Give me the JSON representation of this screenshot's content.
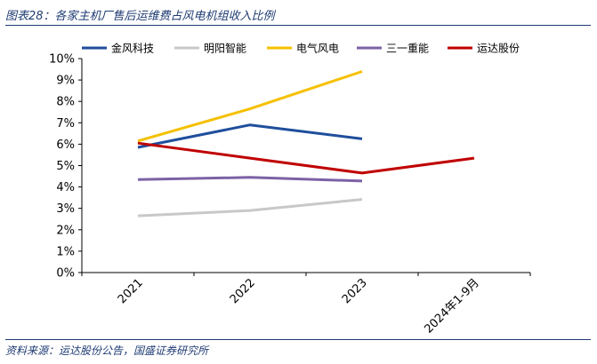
{
  "header": {
    "title": "图表28：各家主机厂售后运维费占风电机组收入比例"
  },
  "footer": {
    "source": "资料来源：运达股份公告，国盛证券研究所"
  },
  "chart_data": {
    "type": "line",
    "categories": [
      "2021",
      "2022",
      "2023",
      "2024年1-9月"
    ],
    "ylim": [
      0,
      10
    ],
    "yticks": [
      0,
      1,
      2,
      3,
      4,
      5,
      6,
      7,
      8,
      9,
      10
    ],
    "ytick_suffix": "%",
    "grid": false,
    "legend_position": "top",
    "series": [
      {
        "name": "金风科技",
        "color": "#1f4e9c",
        "values": [
          5.85,
          6.9,
          6.25,
          null
        ]
      },
      {
        "name": "明阳智能",
        "color": "#c8c8c8",
        "values": [
          2.65,
          2.9,
          3.42,
          null
        ]
      },
      {
        "name": "电气风电",
        "color": "#f5c000",
        "values": [
          6.15,
          7.65,
          9.4,
          null
        ]
      },
      {
        "name": "三一重能",
        "color": "#7b62a6",
        "values": [
          4.35,
          4.45,
          4.28,
          null
        ]
      },
      {
        "name": "运达股份",
        "color": "#c00000",
        "values": [
          6.05,
          5.35,
          4.65,
          5.35
        ]
      }
    ]
  }
}
